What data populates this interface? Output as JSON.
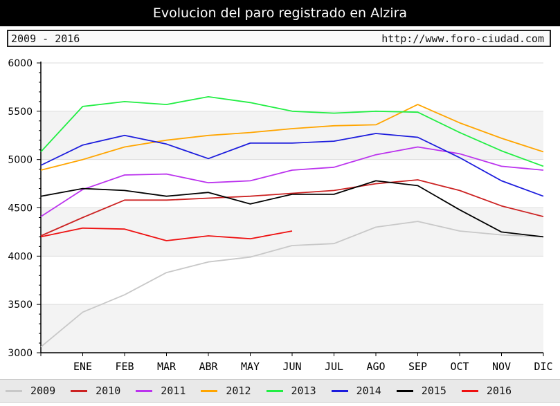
{
  "header": {
    "title": "Evolucion del paro registrado en Alzira",
    "range_label": "2009 - 2016",
    "source_url": "http://www.foro-ciudad.com"
  },
  "chart_data": {
    "type": "line",
    "title": "Evolucion del paro registrado en Alzira",
    "categories": [
      "",
      "ENE",
      "FEB",
      "MAR",
      "ABR",
      "MAY",
      "JUN",
      "JUL",
      "AGO",
      "SEP",
      "OCT",
      "NOV",
      "DIC"
    ],
    "ylim": [
      3000,
      6000
    ],
    "yticks": [
      3000,
      3500,
      4000,
      4500,
      5000,
      5500,
      6000
    ],
    "grid": true,
    "legend_position": "bottom",
    "series": [
      {
        "name": "2009",
        "color": "#c8c8c8",
        "values": [
          3060,
          3420,
          3600,
          3830,
          3940,
          3990,
          4110,
          4130,
          4300,
          4360,
          4260,
          4220,
          4200
        ]
      },
      {
        "name": "2010",
        "color": "#cc2222",
        "values": [
          4210,
          4400,
          4580,
          4580,
          4600,
          4620,
          4650,
          4680,
          4750,
          4790,
          4680,
          4520,
          4410
        ]
      },
      {
        "name": "2011",
        "color": "#bb33ee",
        "values": [
          4410,
          4690,
          4840,
          4850,
          4760,
          4780,
          4890,
          4920,
          5050,
          5130,
          5060,
          4930,
          4890
        ]
      },
      {
        "name": "2012",
        "color": "#ffa500",
        "values": [
          4890,
          5000,
          5130,
          5200,
          5250,
          5280,
          5320,
          5350,
          5360,
          5570,
          5380,
          5220,
          5080
        ]
      },
      {
        "name": "2013",
        "color": "#22ee44",
        "values": [
          5080,
          5550,
          5600,
          5570,
          5650,
          5590,
          5500,
          5480,
          5500,
          5490,
          5280,
          5090,
          4930
        ]
      },
      {
        "name": "2014",
        "color": "#1c1cdd",
        "values": [
          4940,
          5150,
          5250,
          5160,
          5010,
          5170,
          5170,
          5190,
          5270,
          5230,
          5020,
          4780,
          4620
        ]
      },
      {
        "name": "2015",
        "color": "#000000",
        "values": [
          4620,
          4700,
          4680,
          4620,
          4660,
          4540,
          4640,
          4640,
          4780,
          4730,
          4480,
          4250,
          4200
        ]
      },
      {
        "name": "2016",
        "color": "#ee1111",
        "values": [
          4200,
          4290,
          4280,
          4160,
          4210,
          4180,
          4260,
          null,
          null,
          null,
          null,
          null,
          null
        ]
      }
    ]
  }
}
